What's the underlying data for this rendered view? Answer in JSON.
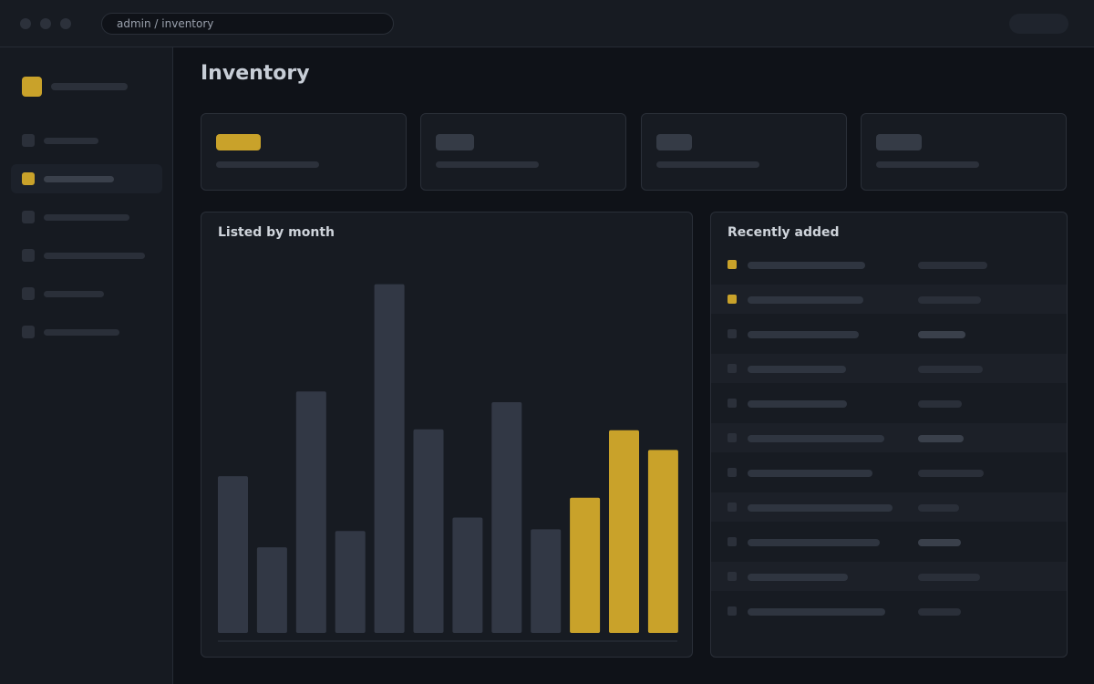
{
  "window": {
    "address": "admin / inventory"
  },
  "page": {
    "title": "Inventory"
  },
  "colors": {
    "accent": "#c9a22a",
    "bar_default": "#323845",
    "background": "#0f1218",
    "panel": "#171b22"
  },
  "sidebar": {
    "active_index": 1,
    "item_count": 6
  },
  "chart_panel": {
    "title": "Listed by month"
  },
  "list_panel": {
    "title": "Recently added",
    "highlighted_rows": 2,
    "row_count": 11
  },
  "chart_data": {
    "type": "bar",
    "title": "Listed by month",
    "values": [
      174,
      95,
      268,
      113,
      387,
      226,
      128,
      256,
      115,
      150,
      225,
      203
    ],
    "highlighted": [
      false,
      false,
      false,
      false,
      false,
      false,
      false,
      false,
      false,
      true,
      true,
      true
    ],
    "ylim": [
      0,
      420
    ],
    "grid": false,
    "legend": "none"
  }
}
